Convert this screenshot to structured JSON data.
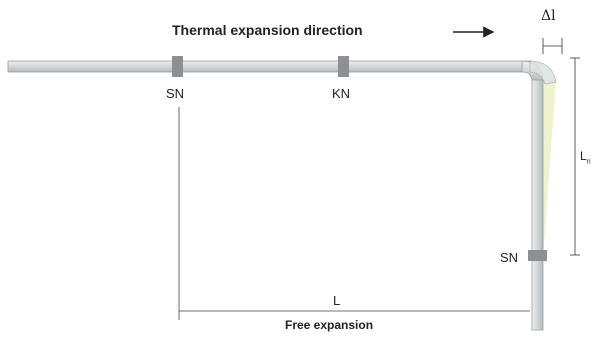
{
  "labels": {
    "title": "Thermal expansion direction",
    "support_left": "SN",
    "support_middle": "KN",
    "support_vertical": "SN",
    "length_L": "L",
    "free_expansion": "Free expansion",
    "delta_l": "Δl",
    "length_Ln_main": "L",
    "length_Ln_sub": "n"
  },
  "colors": {
    "pipe_fill": "#d4d8da",
    "pipe_edge": "#9aa0a4",
    "clamp": "#8c9094",
    "deflection_zone": "#eef0c8",
    "line": "#333333"
  }
}
